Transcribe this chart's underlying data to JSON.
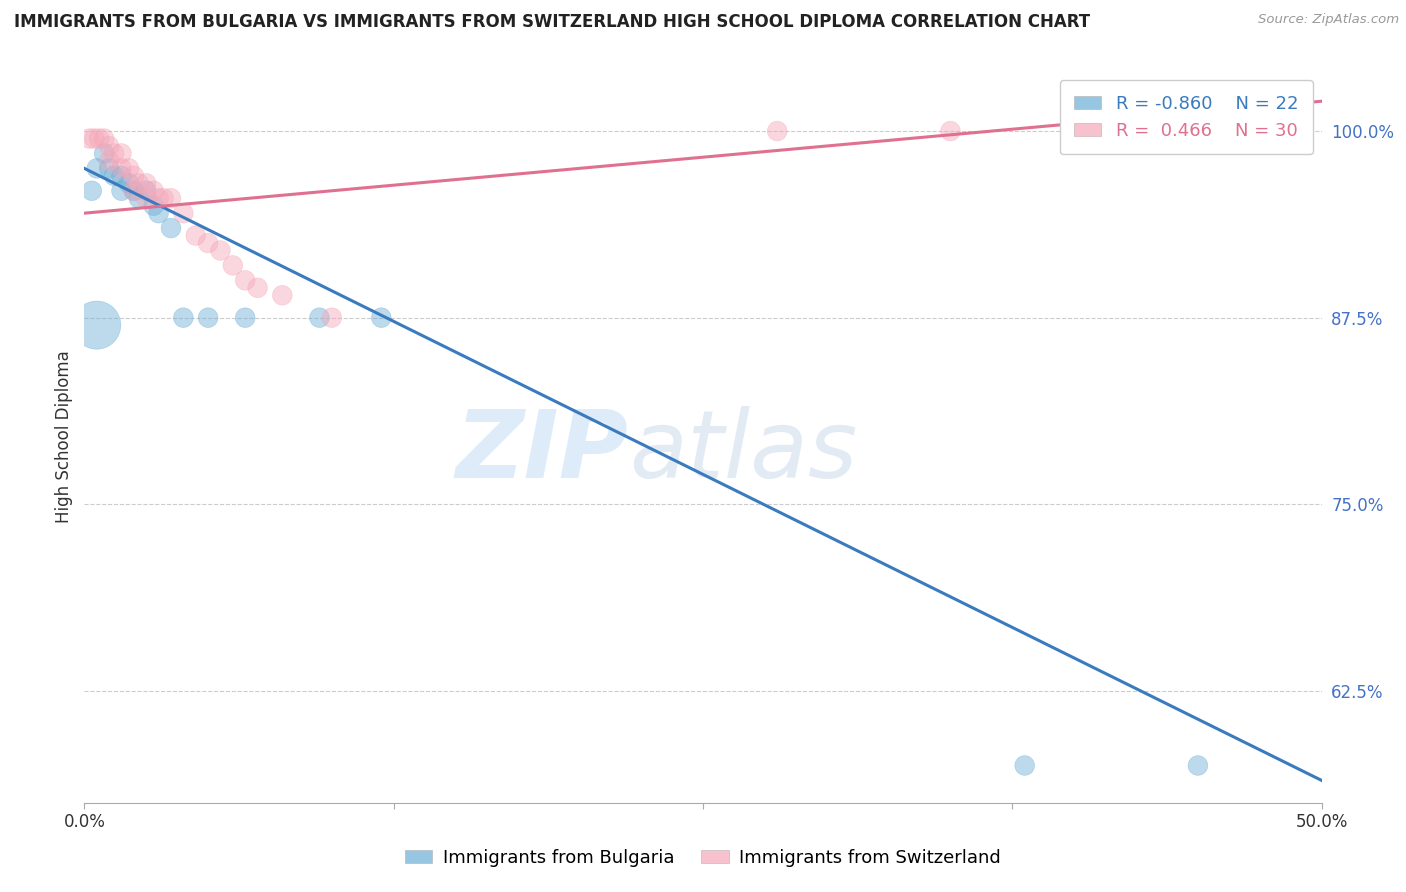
{
  "title": "IMMIGRANTS FROM BULGARIA VS IMMIGRANTS FROM SWITZERLAND HIGH SCHOOL DIPLOMA CORRELATION CHART",
  "source": "Source: ZipAtlas.com",
  "ylabel": "High School Diploma",
  "legend_labels": [
    "Immigrants from Bulgaria",
    "Immigrants from Switzerland"
  ],
  "R_bulgaria": -0.86,
  "N_bulgaria": 22,
  "R_switzerland": 0.466,
  "N_switzerland": 30,
  "xlim": [
    0.0,
    0.5
  ],
  "ylim": [
    0.55,
    1.04
  ],
  "yticks": [
    0.625,
    0.75,
    0.875,
    1.0
  ],
  "ytick_labels": [
    "62.5%",
    "75.0%",
    "87.5%",
    "100.0%"
  ],
  "xticks": [
    0.0,
    0.125,
    0.25,
    0.375,
    0.5
  ],
  "xtick_labels": [
    "0.0%",
    "",
    "",
    "",
    "50.0%"
  ],
  "blue_color": "#6baed6",
  "pink_color": "#f4a7b9",
  "blue_line_color": "#3a7bbf",
  "pink_line_color": "#e07090",
  "watermark_zip": "ZIP",
  "watermark_atlas": "atlas",
  "bulgaria_x": [
    0.005,
    0.008,
    0.01,
    0.012,
    0.015,
    0.015,
    0.018,
    0.02,
    0.022,
    0.025,
    0.028,
    0.03,
    0.035,
    0.04,
    0.05,
    0.065,
    0.095,
    0.12,
    0.38,
    0.45,
    0.005,
    0.003
  ],
  "bulgaria_y": [
    0.975,
    0.985,
    0.975,
    0.97,
    0.97,
    0.96,
    0.965,
    0.96,
    0.955,
    0.96,
    0.95,
    0.945,
    0.935,
    0.875,
    0.875,
    0.875,
    0.875,
    0.875,
    0.575,
    0.575,
    0.87,
    0.96
  ],
  "bulgaria_sizes": [
    200,
    200,
    200,
    200,
    200,
    200,
    200,
    200,
    200,
    200,
    200,
    200,
    200,
    200,
    200,
    200,
    200,
    200,
    200,
    200,
    1200,
    200
  ],
  "switzerland_x": [
    0.002,
    0.004,
    0.006,
    0.008,
    0.01,
    0.01,
    0.012,
    0.015,
    0.015,
    0.018,
    0.02,
    0.02,
    0.022,
    0.025,
    0.025,
    0.028,
    0.03,
    0.032,
    0.035,
    0.04,
    0.045,
    0.05,
    0.055,
    0.06,
    0.065,
    0.07,
    0.08,
    0.1,
    0.28,
    0.35
  ],
  "switzerland_y": [
    0.995,
    0.995,
    0.995,
    0.995,
    0.99,
    0.98,
    0.985,
    0.985,
    0.975,
    0.975,
    0.97,
    0.96,
    0.965,
    0.965,
    0.955,
    0.96,
    0.955,
    0.955,
    0.955,
    0.945,
    0.93,
    0.925,
    0.92,
    0.91,
    0.9,
    0.895,
    0.89,
    0.875,
    1.0,
    1.0
  ],
  "switzerland_sizes": [
    200,
    200,
    200,
    200,
    200,
    200,
    200,
    200,
    200,
    200,
    200,
    200,
    200,
    200,
    200,
    200,
    200,
    200,
    200,
    200,
    200,
    200,
    200,
    200,
    200,
    200,
    200,
    200,
    200,
    200
  ],
  "bul_line_x": [
    0.0,
    0.5
  ],
  "bul_line_y": [
    0.975,
    0.565
  ],
  "swi_line_x": [
    0.0,
    0.5
  ],
  "swi_line_y": [
    0.945,
    1.02
  ]
}
